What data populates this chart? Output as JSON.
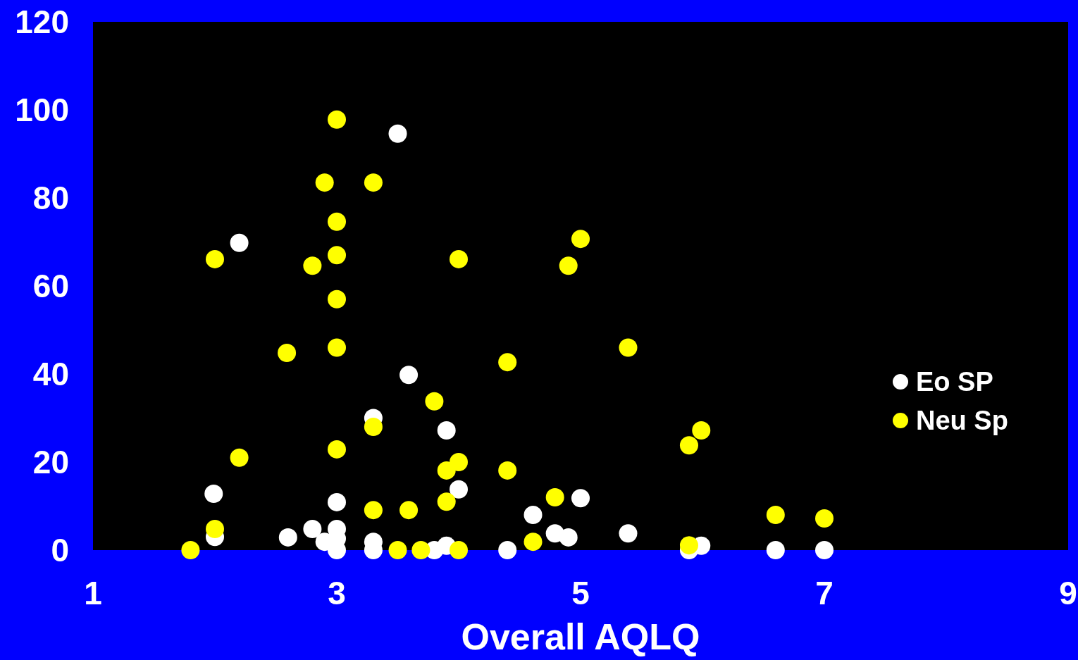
{
  "chart_data": {
    "type": "scatter",
    "xlabel": "Overall AQLQ",
    "xlim": [
      1,
      9
    ],
    "xticks": [
      1,
      3,
      5,
      7,
      9
    ],
    "ylim": [
      0,
      120
    ],
    "yticks": [
      0,
      20,
      40,
      60,
      80,
      100,
      120
    ],
    "grid": false,
    "legend": "right",
    "marker": "circle",
    "series": [
      {
        "name": "Eo SP",
        "color": "#ffffff",
        "x": [
          3.5,
          2.2,
          3.59,
          3.3,
          3.9,
          4.0,
          1.99,
          3.0,
          5.0,
          4.61,
          2.0,
          2.6,
          2.8,
          2.9,
          3.0,
          3.0,
          3.0,
          3.3,
          3.3,
          3.8,
          3.9,
          4.4,
          4.79,
          4.9,
          5.39,
          5.89,
          5.99,
          6.6,
          7.0
        ],
        "values": [
          94.6,
          69.8,
          39.8,
          30,
          27.2,
          13.8,
          12.8,
          10.9,
          11.8,
          8,
          3,
          2.9,
          4.8,
          1.9,
          4.8,
          2.6,
          0,
          1.9,
          0,
          0,
          1,
          0,
          3.8,
          2.9,
          3.8,
          0,
          1,
          0,
          0
        ]
      },
      {
        "name": "Neu Sp",
        "color": "#ffff00",
        "x": [
          3.0,
          2.9,
          3.3,
          3.0,
          5.0,
          2.0,
          4.0,
          2.8,
          3.0,
          4.9,
          3.0,
          2.59,
          3.0,
          5.39,
          4.4,
          3.8,
          3.3,
          5.99,
          5.89,
          2.2,
          3.0,
          4.0,
          3.9,
          4.4,
          4.79,
          3.9,
          3.3,
          3.59,
          6.6,
          7.0,
          2.0,
          4.61,
          5.89,
          1.8,
          3.5,
          3.69,
          4.0
        ],
        "values": [
          97.8,
          83.5,
          83.5,
          74.6,
          70.7,
          66.1,
          66.1,
          64.6,
          67,
          64.6,
          57,
          44.8,
          46,
          46,
          42.7,
          33.8,
          28,
          27.2,
          23.8,
          21,
          22.9,
          20,
          18.1,
          18.1,
          12,
          11,
          9.1,
          9.1,
          8,
          7.2,
          4.8,
          1.9,
          1.1,
          0,
          0,
          0,
          0
        ]
      }
    ]
  }
}
